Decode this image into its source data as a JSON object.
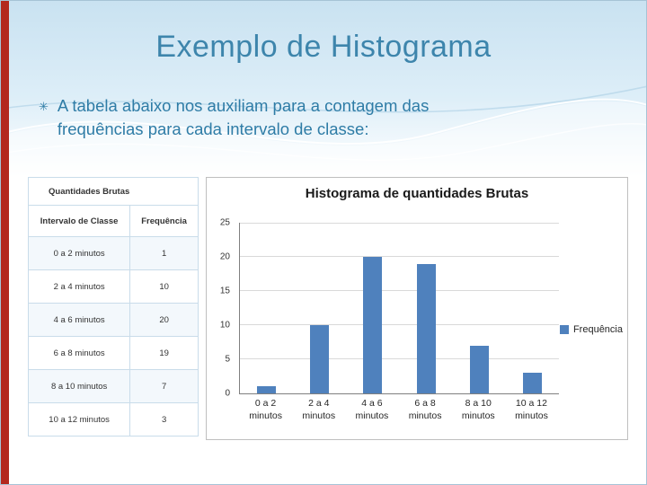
{
  "slide": {
    "title": "Exemplo de Histograma",
    "bullet_glyph": "✳",
    "bullet_text": "A tabela abaixo nos auxiliam para a contagem das frequências para cada intervalo de classe:"
  },
  "table": {
    "title": "Quantidades Brutas",
    "columns": [
      "Intervalo de Classe",
      "Frequência"
    ],
    "rows": [
      [
        "0 a 2 minutos",
        "1"
      ],
      [
        "2 a 4 minutos",
        "10"
      ],
      [
        "4 a 6 minutos",
        "20"
      ],
      [
        "6 a 8 minutos",
        "19"
      ],
      [
        "8 a 10 minutos",
        "7"
      ],
      [
        "10 a 12 minutos",
        "3"
      ]
    ]
  },
  "chart_data": {
    "type": "bar",
    "title": "Histograma de quantidades Brutas",
    "categories": [
      "0 a 2 minutos",
      "2 a 4 minutos",
      "4 a 6 minutos",
      "6 a 8 minutos",
      "8 a 10 minutos",
      "10 a 12 minutos"
    ],
    "values": [
      1,
      10,
      20,
      19,
      7,
      3
    ],
    "xlabel": "",
    "ylabel": "",
    "ylim": [
      0,
      25
    ],
    "yticks": [
      0,
      5,
      10,
      15,
      20,
      25
    ],
    "grid": true,
    "legend": [
      "Frequência"
    ],
    "legend_position": "right",
    "bar_color": "#4f81bd"
  },
  "colors": {
    "accent_red": "#b3281e",
    "title_blue": "#3d85ac",
    "body_teal": "#2e7ca6",
    "bar_blue": "#4f81bd",
    "table_border": "#c9dcea"
  }
}
